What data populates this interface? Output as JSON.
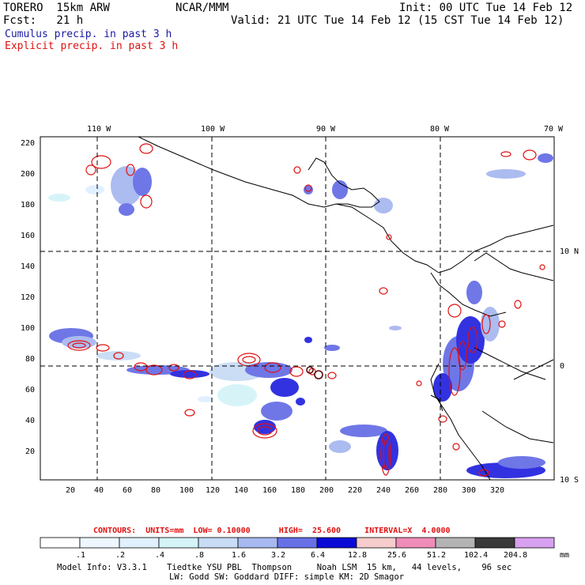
{
  "header": {
    "model_label": "TORERO  15km ARW",
    "org": "NCAR/MMM",
    "init": "Init: 00 UTC Tue 14 Feb 12",
    "fcst": "Fcst:   21 h",
    "valid": "Valid: 21 UTC Tue 14 Feb 12 (15 CST Tue 14 Feb 12)"
  },
  "legend": {
    "cumulus": "Cumulus precip. in past 3 h",
    "explicit": "Explicit precip. in past 3 h",
    "cumulus_color": "#1a1aa6",
    "explicit_color": "#e01010"
  },
  "map": {
    "lon_labels": [
      "110 W",
      "100 W",
      "90 W",
      "80 W",
      "70 W"
    ],
    "lat_labels": [
      "10 N",
      "0",
      "10 S"
    ],
    "y_ticks": [
      "220",
      "200",
      "180",
      "160",
      "140",
      "120",
      "100",
      "80",
      "60",
      "40",
      "20"
    ],
    "x_ticks": [
      "20",
      "40",
      "60",
      "80",
      "100",
      "120",
      "140",
      "160",
      "180",
      "200",
      "220",
      "240",
      "260",
      "280",
      "300",
      "320"
    ]
  },
  "contours": {
    "line": "CONTOURS:  UNITS=mm  LOW= 0.10000      HIGH=  25.600     INTERVAL=X  4.0000"
  },
  "colorbar": {
    "labels": [
      ".1",
      ".2",
      ".4",
      ".8",
      "1.6",
      "3.2",
      "6.4",
      "12.8",
      "25.6",
      "51.2",
      "102.4",
      "204.8"
    ],
    "unit": "mm",
    "colors": [
      "#ffffff",
      "#eef6ff",
      "#e0f0ff",
      "#d4f4f8",
      "#c8dcf5",
      "#a8b8f0",
      "#6870e6",
      "#2828e0",
      "#0a0ad6",
      "#f6cccc",
      "#f08cb8",
      "#b4b4b4",
      "#3a3a3a",
      "#d8a0f0"
    ]
  },
  "footer": {
    "line1": "Model Info: V3.3.1    Tiedtke YSU PBL  Thompson     Noah LSM  15 km,   44 levels,    96 sec",
    "line2": "LW: Godd SW: Goddard DIFF: simple KM: 2D Smagor"
  }
}
